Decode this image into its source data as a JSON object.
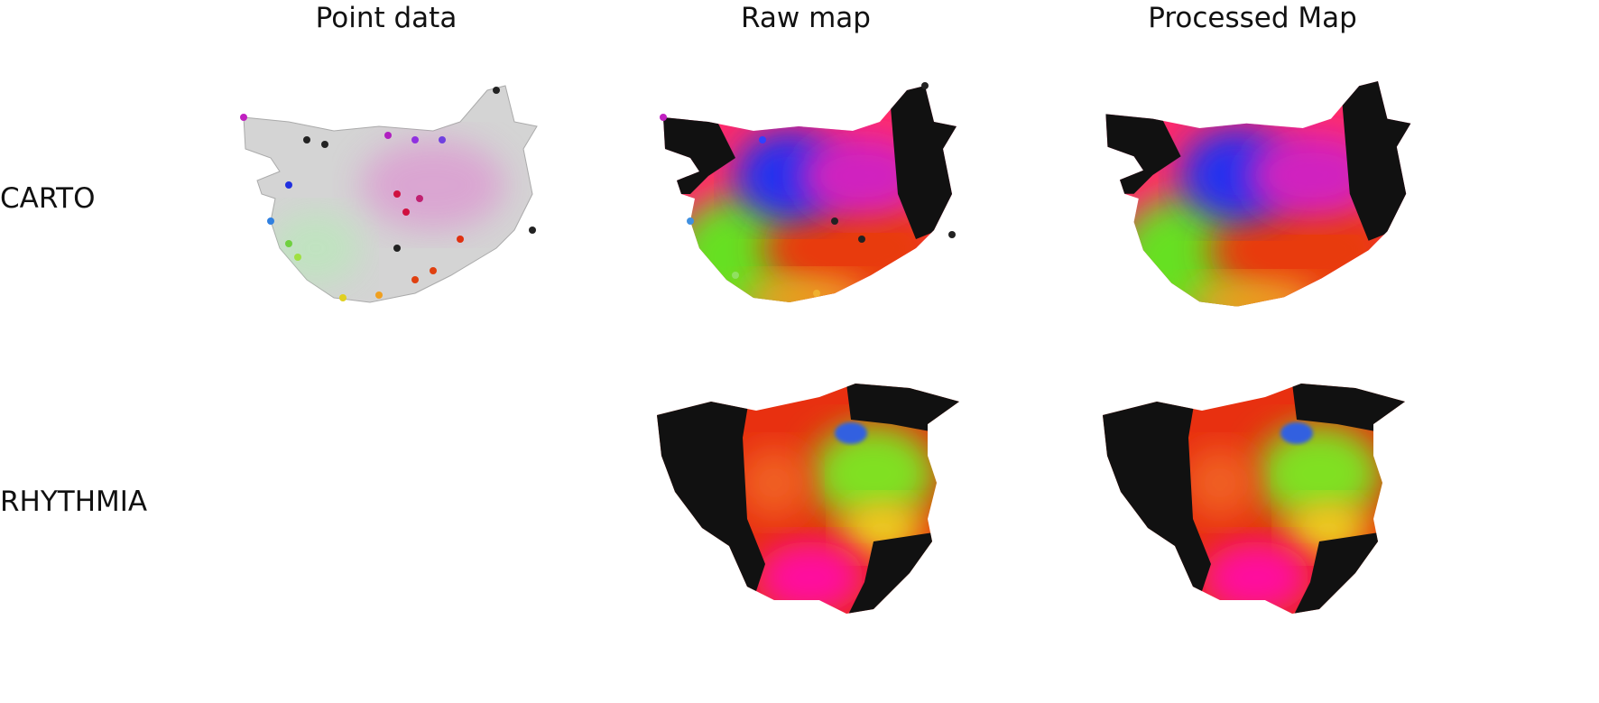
{
  "columns": [
    "Point data",
    "Raw map",
    "Processed Map"
  ],
  "rows": [
    "CARTO",
    "RHYTHMIA"
  ]
}
